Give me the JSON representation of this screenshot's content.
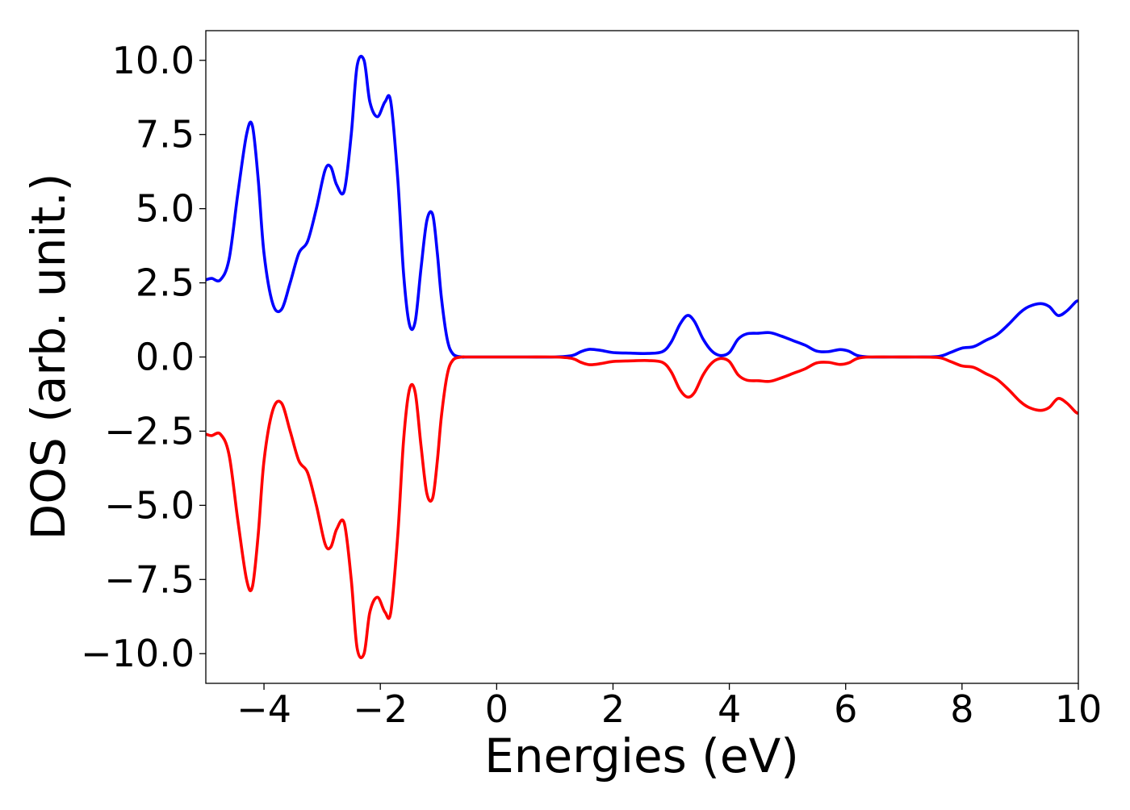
{
  "chart_data": {
    "type": "line",
    "title": "",
    "xlabel": "Energies (eV)",
    "ylabel": "DOS (arb. unit.)",
    "xlim": [
      -5,
      10
    ],
    "ylim": [
      -11,
      11
    ],
    "grid": false,
    "x_ticks": [
      -4,
      -2,
      0,
      2,
      4,
      6,
      8,
      10
    ],
    "x_tick_labels": [
      "−4",
      "−2",
      "0",
      "2",
      "4",
      "6",
      "8",
      "10"
    ],
    "y_ticks": [
      -10,
      -7.5,
      -5,
      -2.5,
      0,
      2.5,
      5,
      7.5,
      10
    ],
    "y_tick_labels": [
      "−10.0",
      "−7.5",
      "−5.0",
      "−2.5",
      "0.0",
      "2.5",
      "5.0",
      "7.5",
      "10.0"
    ],
    "series": [
      {
        "color": "#0000ff",
        "x": [
          -5.0,
          -4.9,
          -4.75,
          -4.6,
          -4.45,
          -4.3,
          -4.2,
          -4.1,
          -4.0,
          -3.85,
          -3.7,
          -3.55,
          -3.4,
          -3.25,
          -3.1,
          -2.95,
          -2.85,
          -2.75,
          -2.62,
          -2.5,
          -2.4,
          -2.28,
          -2.18,
          -2.05,
          -1.92,
          -1.82,
          -1.7,
          -1.6,
          -1.5,
          -1.4,
          -1.3,
          -1.2,
          -1.1,
          -1.02,
          -0.95,
          -0.85,
          -0.75,
          -0.6,
          -0.5,
          0.0,
          0.5,
          1.0,
          1.3,
          1.45,
          1.6,
          1.8,
          2.0,
          2.3,
          2.6,
          2.85,
          3.0,
          3.15,
          3.28,
          3.4,
          3.55,
          3.7,
          3.85,
          4.0,
          4.15,
          4.3,
          4.5,
          4.7,
          4.9,
          5.1,
          5.3,
          5.5,
          5.7,
          5.9,
          6.05,
          6.2,
          6.4,
          6.8,
          7.2,
          7.6,
          7.8,
          8.0,
          8.2,
          8.4,
          8.6,
          8.8,
          9.0,
          9.15,
          9.35,
          9.5,
          9.65,
          9.8,
          9.95,
          10.0
        ],
        "y": [
          2.6,
          2.65,
          2.6,
          3.3,
          5.5,
          7.5,
          7.8,
          6.0,
          3.5,
          1.8,
          1.6,
          2.5,
          3.5,
          3.9,
          5.0,
          6.3,
          6.4,
          5.8,
          5.6,
          7.5,
          9.8,
          10.0,
          8.6,
          8.1,
          8.6,
          8.6,
          6.0,
          2.8,
          1.1,
          1.2,
          3.0,
          4.6,
          4.8,
          3.5,
          2.0,
          0.6,
          0.1,
          0.0,
          0.0,
          0.0,
          0.0,
          0.0,
          0.05,
          0.18,
          0.26,
          0.22,
          0.15,
          0.13,
          0.12,
          0.18,
          0.5,
          1.1,
          1.4,
          1.2,
          0.6,
          0.2,
          0.05,
          0.15,
          0.6,
          0.78,
          0.8,
          0.82,
          0.7,
          0.55,
          0.4,
          0.2,
          0.18,
          0.25,
          0.2,
          0.05,
          0.0,
          0.0,
          0.0,
          0.02,
          0.15,
          0.3,
          0.35,
          0.55,
          0.75,
          1.1,
          1.5,
          1.7,
          1.8,
          1.7,
          1.4,
          1.55,
          1.85,
          1.9
        ]
      },
      {
        "color": "#ff0000",
        "x": [
          -5.0,
          -4.9,
          -4.75,
          -4.6,
          -4.45,
          -4.3,
          -4.2,
          -4.1,
          -4.0,
          -3.85,
          -3.7,
          -3.55,
          -3.4,
          -3.25,
          -3.1,
          -2.95,
          -2.85,
          -2.75,
          -2.62,
          -2.5,
          -2.4,
          -2.28,
          -2.18,
          -2.05,
          -1.92,
          -1.82,
          -1.7,
          -1.6,
          -1.5,
          -1.4,
          -1.3,
          -1.2,
          -1.1,
          -1.02,
          -0.95,
          -0.85,
          -0.75,
          -0.6,
          -0.5,
          0.0,
          0.5,
          1.0,
          1.3,
          1.45,
          1.6,
          1.8,
          2.0,
          2.3,
          2.6,
          2.85,
          3.0,
          3.15,
          3.28,
          3.4,
          3.55,
          3.7,
          3.85,
          4.0,
          4.15,
          4.3,
          4.5,
          4.7,
          4.9,
          5.1,
          5.3,
          5.5,
          5.7,
          5.9,
          6.05,
          6.2,
          6.4,
          6.8,
          7.2,
          7.6,
          7.8,
          8.0,
          8.2,
          8.4,
          8.6,
          8.8,
          9.0,
          9.15,
          9.35,
          9.5,
          9.65,
          9.8,
          9.95,
          10.0
        ],
        "y": [
          -2.6,
          -2.65,
          -2.6,
          -3.3,
          -5.5,
          -7.5,
          -7.75,
          -6.0,
          -3.5,
          -1.8,
          -1.55,
          -2.5,
          -3.5,
          -3.9,
          -5.0,
          -6.3,
          -6.4,
          -5.8,
          -5.6,
          -7.5,
          -9.8,
          -10.0,
          -8.6,
          -8.1,
          -8.6,
          -8.6,
          -6.0,
          -2.8,
          -1.1,
          -1.2,
          -3.0,
          -4.6,
          -4.75,
          -3.5,
          -2.0,
          -0.6,
          -0.1,
          0.0,
          0.0,
          0.0,
          0.0,
          0.0,
          -0.05,
          -0.18,
          -0.26,
          -0.22,
          -0.15,
          -0.13,
          -0.12,
          -0.18,
          -0.5,
          -1.1,
          -1.35,
          -1.2,
          -0.6,
          -0.2,
          -0.05,
          -0.15,
          -0.6,
          -0.78,
          -0.8,
          -0.82,
          -0.7,
          -0.55,
          -0.4,
          -0.2,
          -0.18,
          -0.25,
          -0.2,
          -0.05,
          0.0,
          0.0,
          0.0,
          -0.02,
          -0.15,
          -0.3,
          -0.35,
          -0.55,
          -0.75,
          -1.1,
          -1.5,
          -1.7,
          -1.8,
          -1.7,
          -1.4,
          -1.55,
          -1.85,
          -1.9
        ]
      }
    ]
  }
}
